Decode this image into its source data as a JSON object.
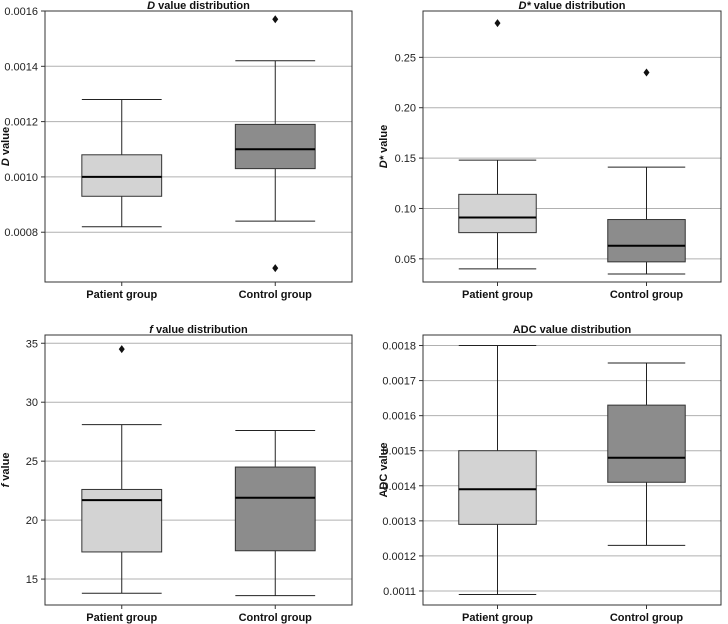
{
  "chart_data": [
    {
      "type": "box",
      "title_symbol": "D",
      "title_rest": " value distribution",
      "ylabel_symbol": "D",
      "ylabel_rest": " value",
      "categories": [
        "Patient group",
        "Control group"
      ],
      "ylim": [
        0.00062,
        0.0016
      ],
      "yticks": [
        0.0008,
        0.001,
        0.0012,
        0.0014,
        0.0016
      ],
      "ytick_labels": [
        "0.0008",
        "0.0010",
        "0.0012",
        "0.0014",
        "0.0016"
      ],
      "boxes": [
        {
          "name": "Patient group",
          "color": "#d3d3d3",
          "whislo": 0.00082,
          "q1": 0.00093,
          "med": 0.001,
          "q3": 0.00108,
          "whishi": 0.00128,
          "fliers": []
        },
        {
          "name": "Control group",
          "color": "#8c8c8c",
          "whislo": 0.00084,
          "q1": 0.00103,
          "med": 0.0011,
          "q3": 0.00119,
          "whishi": 0.00142,
          "fliers": [
            0.00157,
            0.00067
          ]
        }
      ]
    },
    {
      "type": "box",
      "title_symbol": "D*",
      "title_rest": " value distribution",
      "ylabel_symbol": "D*",
      "ylabel_rest": " value",
      "categories": [
        "Patient group",
        "Control group"
      ],
      "ylim": [
        0.027,
        0.296
      ],
      "yticks": [
        0.05,
        0.1,
        0.15,
        0.2,
        0.25
      ],
      "ytick_labels": [
        "0.05",
        "0.10",
        "0.15",
        "0.20",
        "0.25"
      ],
      "boxes": [
        {
          "name": "Patient group",
          "color": "#d3d3d3",
          "whislo": 0.04,
          "q1": 0.076,
          "med": 0.091,
          "q3": 0.114,
          "whishi": 0.148,
          "fliers": [
            0.284
          ]
        },
        {
          "name": "Control group",
          "color": "#8c8c8c",
          "whislo": 0.035,
          "q1": 0.047,
          "med": 0.063,
          "q3": 0.089,
          "whishi": 0.141,
          "fliers": [
            0.235
          ]
        }
      ]
    },
    {
      "type": "box",
      "title_symbol": "f",
      "title_rest": " value distribution",
      "ylabel_symbol": "f",
      "ylabel_rest": " value",
      "categories": [
        "Patient group",
        "Control group"
      ],
      "ylim": [
        12.8,
        35.7
      ],
      "yticks": [
        15,
        20,
        25,
        30,
        35
      ],
      "ytick_labels": [
        "15",
        "20",
        "25",
        "30",
        "35"
      ],
      "boxes": [
        {
          "name": "Patient group",
          "color": "#d3d3d3",
          "whislo": 13.8,
          "q1": 17.3,
          "med": 21.7,
          "q3": 22.6,
          "whishi": 28.1,
          "fliers": [
            34.5
          ]
        },
        {
          "name": "Control group",
          "color": "#8c8c8c",
          "whislo": 13.6,
          "q1": 17.4,
          "med": 21.9,
          "q3": 24.5,
          "whishi": 27.6,
          "fliers": []
        }
      ]
    },
    {
      "type": "box",
      "title_symbol": "",
      "title_rest": "ADC value distribution",
      "ylabel_symbol": "",
      "ylabel_rest": "ADC value",
      "categories": [
        "Patient group",
        "Control group"
      ],
      "ylim": [
        0.00106,
        0.00183
      ],
      "yticks": [
        0.0011,
        0.0012,
        0.0013,
        0.0014,
        0.0015,
        0.0016,
        0.0017,
        0.0018
      ],
      "ytick_labels": [
        "0.0011",
        "0.0012",
        "0.0013",
        "0.0014",
        "0.0015",
        "0.0016",
        "0.0017",
        "0.0018"
      ],
      "boxes": [
        {
          "name": "Patient group",
          "color": "#d3d3d3",
          "whislo": 0.00109,
          "q1": 0.00129,
          "med": 0.00139,
          "q3": 0.0015,
          "whishi": 0.0018,
          "fliers": []
        },
        {
          "name": "Control group",
          "color": "#8c8c8c",
          "whislo": 0.00123,
          "q1": 0.00141,
          "med": 0.00148,
          "q3": 0.00163,
          "whishi": 0.00175,
          "fliers": []
        }
      ]
    }
  ]
}
